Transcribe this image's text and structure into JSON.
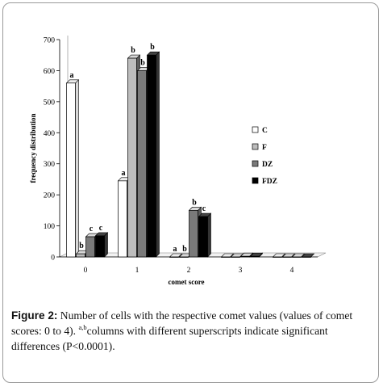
{
  "chart_data": {
    "type": "bar",
    "xlabel": "comet score",
    "ylabel": "frequency distribution",
    "ylim": [
      0,
      700
    ],
    "yticks": [
      0,
      100,
      200,
      300,
      400,
      500,
      600,
      700
    ],
    "categories": [
      "0",
      "1",
      "2",
      "3",
      "4"
    ],
    "series": [
      {
        "name": "C",
        "color": "#ffffff",
        "values": [
          560,
          245,
          0,
          0,
          0
        ]
      },
      {
        "name": "F",
        "color": "#bdbdbd",
        "values": [
          10,
          640,
          0,
          0,
          0
        ]
      },
      {
        "name": "DZ",
        "color": "#7a7a7a",
        "values": [
          65,
          600,
          150,
          2,
          0
        ]
      },
      {
        "name": "FDZ",
        "color": "#000000",
        "values": [
          68,
          650,
          130,
          2,
          0
        ]
      }
    ],
    "significance_labels": [
      [
        "a",
        "b",
        "c",
        "c"
      ],
      [
        "a",
        "b",
        "b",
        "b"
      ],
      [
        "a",
        "b",
        "b",
        "c"
      ],
      [
        "",
        "",
        "",
        ""
      ],
      [
        "",
        "",
        "",
        ""
      ]
    ],
    "legend_position": "right",
    "grid": false
  },
  "caption": {
    "label": "Figure 2:",
    "text1": " Number of cells with the respective comet values (values of comet scores: 0 to 4). ",
    "sup": "a,b",
    "text2": "columns with different superscripts indicate significant differences (P<0.0001)."
  }
}
